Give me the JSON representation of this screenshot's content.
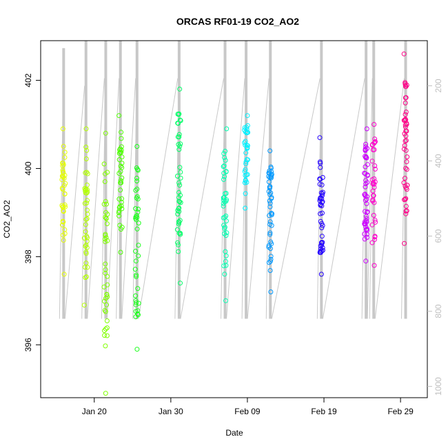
{
  "chart_data": {
    "type": "scatter",
    "title": "ORCAS RF01-19 CO2_AO2",
    "xlabel": "Date",
    "ylabel": "CO2_AO2",
    "x_range": [
      "2016-01-13T00:00",
      "2016-03-03T12:00"
    ],
    "x_ticks": [
      {
        "date": "2016-01-20",
        "label": "Jan 20"
      },
      {
        "date": "2016-01-30",
        "label": "Jan 30"
      },
      {
        "date": "2016-02-09",
        "label": "Feb 09"
      },
      {
        "date": "2016-02-19",
        "label": "Feb 19"
      },
      {
        "date": "2016-02-29",
        "label": "Feb 29"
      }
    ],
    "ylim": [
      394.8,
      402.9
    ],
    "y_ticks": [
      396,
      398,
      400,
      402
    ],
    "secondary_y": {
      "range": [
        1030,
        80
      ],
      "ticks": [
        200,
        400,
        600,
        800,
        1000
      ],
      "color": "#c0c0c0"
    },
    "flights": [
      {
        "date": "2016-01-16",
        "color": "#e5ff00",
        "y_min": 397.6,
        "y_max": 400.9,
        "points": 38,
        "press_min": 100
      },
      {
        "date": "2016-01-18T22:00",
        "color": "#b3ff00",
        "y_min": 396.9,
        "y_max": 400.9,
        "points": 40,
        "press_min": 80
      },
      {
        "date": "2016-01-21T12:00",
        "color": "#80ff00",
        "y_min": 394.9,
        "y_max": 400.8,
        "points": 42,
        "press_min": 80
      },
      {
        "date": "2016-01-23T10:00",
        "color": "#4cff00",
        "y_min": 398.1,
        "y_max": 401.2,
        "points": 36,
        "press_min": 80
      },
      {
        "date": "2016-01-25T14:00",
        "color": "#1aff1a",
        "y_min": 395.9,
        "y_max": 400.5,
        "points": 40,
        "press_min": 80
      },
      {
        "date": "2016-01-31T02:00",
        "color": "#00ff66",
        "y_min": 397.4,
        "y_max": 401.8,
        "points": 44,
        "press_min": 80
      },
      {
        "date": "2016-02-06T02:00",
        "color": "#00ffb0",
        "y_min": 397.0,
        "y_max": 400.9,
        "points": 40,
        "press_min": 80
      },
      {
        "date": "2016-02-08T20:00",
        "color": "#00f0ff",
        "y_min": 399.1,
        "y_max": 401.2,
        "points": 34,
        "press_min": 80
      },
      {
        "date": "2016-02-12T00:00",
        "color": "#0099ff",
        "y_min": 397.2,
        "y_max": 400.4,
        "points": 46,
        "press_min": 80
      },
      {
        "date": "2016-02-18T16:00",
        "color": "#2200ff",
        "y_min": 397.6,
        "y_max": 400.7,
        "points": 44,
        "press_min": 80
      },
      {
        "date": "2016-02-24T12:00",
        "color": "#cc00ff",
        "y_min": 397.9,
        "y_max": 400.9,
        "points": 48,
        "press_min": 80
      },
      {
        "date": "2016-02-25T12:00",
        "color": "#ff00cc",
        "y_min": 397.8,
        "y_max": 401.0,
        "points": 34,
        "press_min": 80
      },
      {
        "date": "2016-02-29T16:00",
        "color": "#ff0088",
        "y_min": 398.3,
        "y_max": 402.6,
        "points": 48,
        "press_min": 80
      }
    ],
    "pressure_trace_color": "#c8c8c8",
    "grid": false,
    "legend": "none"
  }
}
